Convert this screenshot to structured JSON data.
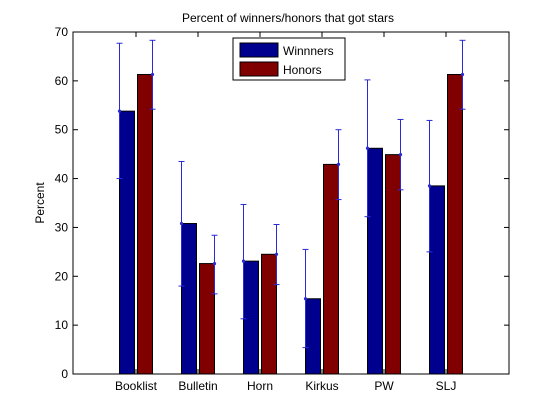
{
  "chart_data": {
    "type": "bar",
    "title": "Percent of winners/honors that got stars",
    "xlabel": "",
    "ylabel": "Percent",
    "ylim": [
      0,
      70
    ],
    "yticks": [
      0,
      10,
      20,
      30,
      40,
      50,
      60,
      70
    ],
    "grid": false,
    "legend_position": "top-center",
    "categories": [
      "Booklist",
      "Bulletin",
      "Horn",
      "Kirkus",
      "PW",
      "SLJ"
    ],
    "series": [
      {
        "name": "Winnners",
        "color": "#00008f",
        "values": [
          53.8,
          30.8,
          23.1,
          15.4,
          46.2,
          38.5
        ],
        "error_low": [
          40.0,
          18.0,
          11.3,
          5.4,
          32.2,
          25.0
        ],
        "error_high": [
          67.7,
          43.5,
          34.7,
          25.5,
          60.2,
          51.9
        ]
      },
      {
        "name": "Honors",
        "color": "#800000",
        "values": [
          61.3,
          22.6,
          24.5,
          42.9,
          44.9,
          61.3
        ],
        "error_low": [
          54.2,
          16.4,
          18.3,
          35.7,
          37.7,
          54.2
        ],
        "error_high": [
          68.3,
          28.4,
          30.6,
          50.0,
          52.1,
          68.3
        ]
      }
    ]
  }
}
